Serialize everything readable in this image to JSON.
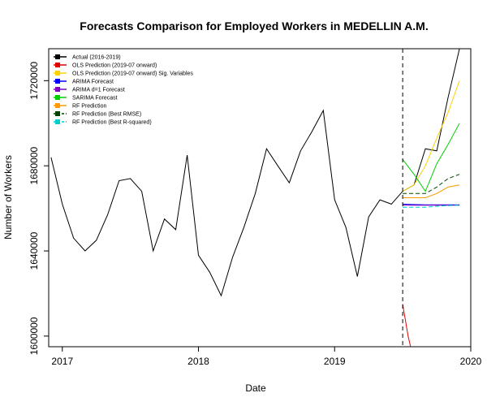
{
  "chart_data": {
    "type": "line",
    "title": "Forecasts Comparison for Employed Workers in MEDELLIN A.M.",
    "xlabel": "Date",
    "ylabel": "Number of Workers",
    "xlim": [
      2016.9,
      2020.0
    ],
    "ylim": [
      1595000,
      1735000
    ],
    "x_ticks": [
      {
        "value": 2017,
        "label": "2017"
      },
      {
        "value": 2018,
        "label": "2018"
      },
      {
        "value": 2019,
        "label": "2019"
      },
      {
        "value": 2020,
        "label": "2020"
      }
    ],
    "y_ticks": [
      {
        "value": 1600000,
        "label": "1600000"
      },
      {
        "value": 1640000,
        "label": "1640000"
      },
      {
        "value": 1680000,
        "label": "1680000"
      },
      {
        "value": 1720000,
        "label": "1720000"
      }
    ],
    "forecast_start": 2019.5,
    "legend_position": "top-left",
    "grid": false,
    "series": [
      {
        "name": "Actual (2016-2019)",
        "color": "#000000",
        "dash": "solid",
        "x": [
          2016.917,
          2017.0,
          2017.083,
          2017.167,
          2017.25,
          2017.333,
          2017.417,
          2017.5,
          2017.583,
          2017.667,
          2017.75,
          2017.833,
          2017.917,
          2018.0,
          2018.083,
          2018.167,
          2018.25,
          2018.333,
          2018.417,
          2018.5,
          2018.583,
          2018.667,
          2018.75,
          2018.833,
          2018.917,
          2019.0,
          2019.083,
          2019.167,
          2019.25,
          2019.333,
          2019.417,
          2019.5,
          2019.583,
          2019.667,
          2019.75,
          2019.833,
          2019.917
        ],
        "values": [
          1684000,
          1662000,
          1646000,
          1640000,
          1645000,
          1657000,
          1673000,
          1674000,
          1668000,
          1640000,
          1655000,
          1650000,
          1685000,
          1638000,
          1630000,
          1619000,
          1637000,
          1651000,
          1667000,
          1688000,
          1680000,
          1672000,
          1687000,
          1696000,
          1706000,
          1664000,
          1651000,
          1628000,
          1656000,
          1664000,
          1662000,
          1668000,
          1671000,
          1688000,
          1687000,
          1712000,
          1735000
        ]
      },
      {
        "name": "OLS Prediction (2019-07 onward)",
        "color": "#e00000",
        "dash": "solid",
        "x": [
          2019.5,
          2019.54,
          2019.583
        ],
        "values": [
          1615000,
          1600000,
          1588000
        ]
      },
      {
        "name": "OLS Prediction (2019-07 onward) Sig. Variables",
        "color": "#ffd000",
        "dash": "solid",
        "x": [
          2019.5,
          2019.583,
          2019.667,
          2019.75,
          2019.833,
          2019.917
        ],
        "values": [
          1668000,
          1671000,
          1680000,
          1693000,
          1705000,
          1720000
        ]
      },
      {
        "name": "ARIMA Forecast",
        "color": "#0000ff",
        "dash": "solid",
        "x": [
          2019.5,
          2019.583,
          2019.667,
          2019.75,
          2019.833,
          2019.917
        ],
        "values": [
          1662000,
          1661800,
          1661700,
          1661700,
          1661700,
          1661700
        ]
      },
      {
        "name": "ARIMA d=1 Forecast",
        "color": "#8000c0",
        "dash": "solid",
        "x": [
          2019.5,
          2019.583,
          2019.667,
          2019.75,
          2019.833,
          2019.917
        ],
        "values": [
          1661500,
          1661500,
          1661500,
          1661500,
          1661500,
          1661500
        ]
      },
      {
        "name": "SARIMA Forecast",
        "color": "#00d000",
        "dash": "solid",
        "x": [
          2019.5,
          2019.583,
          2019.667,
          2019.75,
          2019.833,
          2019.917
        ],
        "values": [
          1683000,
          1676000,
          1668000,
          1681000,
          1690000,
          1700000
        ]
      },
      {
        "name": "RF Prediction",
        "color": "#ff9900",
        "dash": "solid",
        "x": [
          2019.5,
          2019.583,
          2019.667,
          2019.75,
          2019.833,
          2019.917
        ],
        "values": [
          1665000,
          1665000,
          1665000,
          1667000,
          1670000,
          1671000
        ]
      },
      {
        "name": "RF Prediction (Best RMSE)",
        "color": "#004400",
        "dash": "dashed",
        "x": [
          2019.5,
          2019.583,
          2019.667,
          2019.75,
          2019.833,
          2019.917
        ],
        "values": [
          1667000,
          1667000,
          1667000,
          1670000,
          1674000,
          1676000
        ]
      },
      {
        "name": "RF Prediction (Best R-squared)",
        "color": "#00cccc",
        "dash": "dashed",
        "x": [
          2019.5,
          2019.583,
          2019.667,
          2019.75,
          2019.833,
          2019.917
        ],
        "values": [
          1660500,
          1660500,
          1660500,
          1661000,
          1661300,
          1661500
        ]
      }
    ]
  }
}
